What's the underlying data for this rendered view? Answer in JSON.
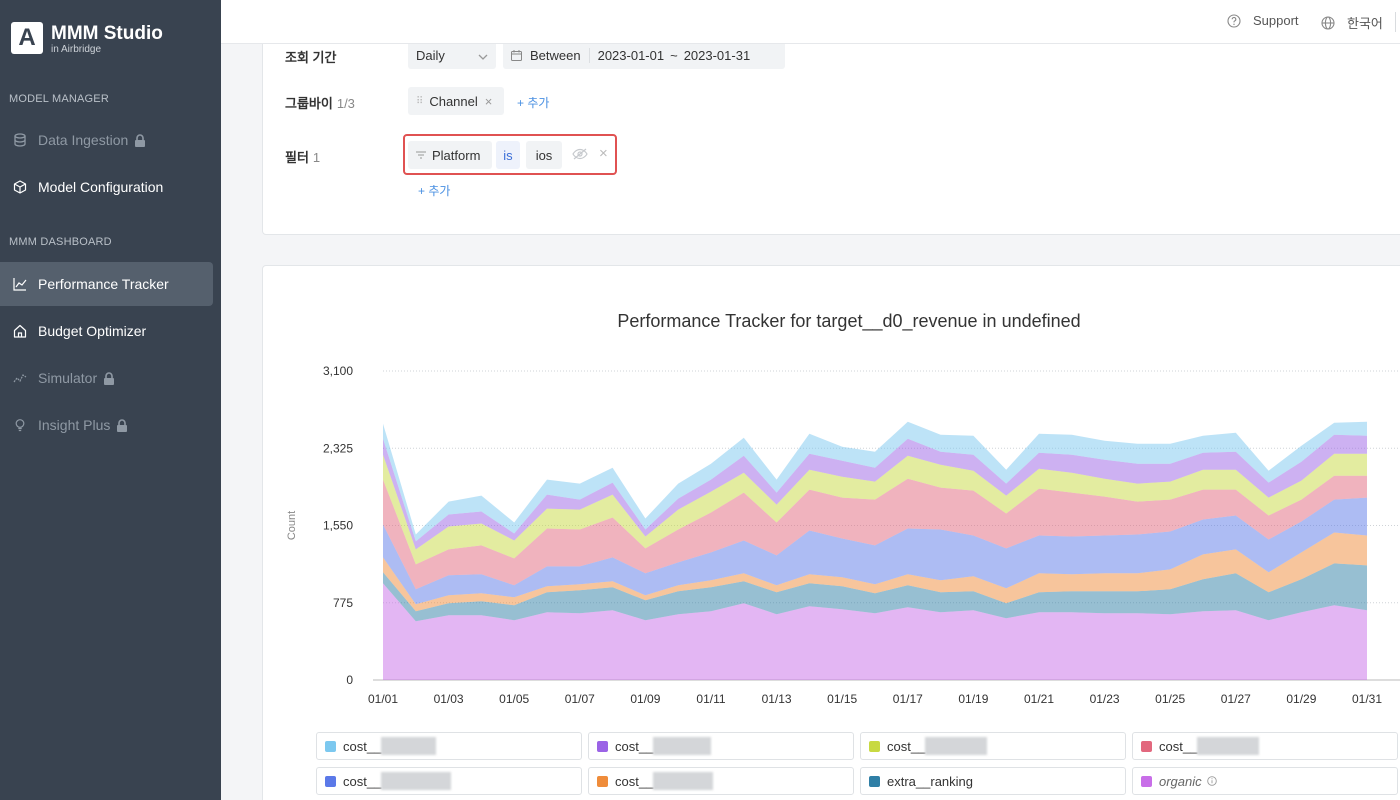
{
  "brand": {
    "logo_letter": "A",
    "title": "MMM Studio",
    "subtitle": "in Airbridge"
  },
  "sidebar": {
    "sections": [
      {
        "title": "MODEL MANAGER"
      },
      {
        "title": "MMM DASHBOARD"
      }
    ],
    "items": [
      {
        "label": "Data Ingestion",
        "icon": "database-icon",
        "locked": true,
        "disabled": true
      },
      {
        "label": "Model Configuration",
        "icon": "cube-icon",
        "locked": false,
        "disabled": false
      },
      {
        "label": "Performance Tracker",
        "icon": "chart-line-icon",
        "locked": false,
        "active": true
      },
      {
        "label": "Budget Optimizer",
        "icon": "house-icon",
        "locked": false
      },
      {
        "label": "Simulator",
        "icon": "sparkline-icon",
        "locked": true,
        "disabled": true
      },
      {
        "label": "Insight Plus",
        "icon": "bulb-icon",
        "locked": true,
        "disabled": true
      }
    ]
  },
  "topbar": {
    "support": "Support",
    "language": "한국어"
  },
  "filters": {
    "period_label": "조회 기간",
    "granularity": "Daily",
    "between_label": "Between",
    "start_date": "2023-01-01",
    "range_sep": "~",
    "end_date": "2023-01-31",
    "groupby_label": "그룹바이",
    "groupby_count": "1/3",
    "groupby_chip": "Channel",
    "add_label": "+ 추가",
    "filter_label": "필터",
    "filter_count": "1",
    "filter_field": "Platform",
    "filter_op": "is",
    "filter_value": "ios"
  },
  "chart_data": {
    "type": "area",
    "title": "Performance Tracker for target__d0_revenue in undefined",
    "ylabel": "Count",
    "xlabel": "",
    "ylim": [
      0,
      3100
    ],
    "yticks": [
      "0",
      "775",
      "1,550",
      "2,325",
      "3,100"
    ],
    "x": [
      "01/01",
      "01/02",
      "01/03",
      "01/04",
      "01/05",
      "01/06",
      "01/07",
      "01/08",
      "01/09",
      "01/10",
      "01/11",
      "01/12",
      "01/13",
      "01/14",
      "01/15",
      "01/16",
      "01/17",
      "01/18",
      "01/19",
      "01/20",
      "01/21",
      "01/22",
      "01/23",
      "01/24",
      "01/25",
      "01/26",
      "01/27",
      "01/28",
      "01/29",
      "01/30",
      "01/31"
    ],
    "xticks": [
      "01/01",
      "01/03",
      "01/05",
      "01/07",
      "01/09",
      "01/11",
      "01/13",
      "01/15",
      "01/17",
      "01/19",
      "01/21",
      "01/23",
      "01/25",
      "01/27",
      "01/29",
      "01/31"
    ],
    "stacked": true,
    "series": [
      {
        "name": "organic",
        "color": "#c86ee8",
        "values": [
          970,
          590,
          650,
          650,
          600,
          680,
          670,
          700,
          600,
          660,
          690,
          770,
          660,
          740,
          710,
          670,
          730,
          680,
          700,
          620,
          680,
          680,
          670,
          670,
          660,
          690,
          700,
          600,
          680,
          750,
          700
        ]
      },
      {
        "name": "extra__ranking",
        "color": "#2f7fa6",
        "values": [
          110,
          100,
          120,
          140,
          150,
          200,
          230,
          230,
          200,
          230,
          240,
          220,
          220,
          230,
          230,
          200,
          220,
          200,
          190,
          150,
          200,
          210,
          220,
          220,
          250,
          320,
          370,
          280,
          330,
          420,
          450
        ]
      },
      {
        "name": "cost__",
        "color": "#ef8c3a",
        "values": [
          150,
          70,
          80,
          80,
          80,
          60,
          60,
          60,
          50,
          60,
          70,
          80,
          70,
          90,
          90,
          90,
          110,
          120,
          150,
          150,
          190,
          170,
          180,
          180,
          200,
          250,
          240,
          200,
          270,
          310,
          300
        ]
      },
      {
        "name": "cost__",
        "color": "#5b79e8",
        "values": [
          330,
          150,
          200,
          190,
          120,
          200,
          180,
          240,
          220,
          230,
          280,
          330,
          300,
          440,
          390,
          390,
          460,
          510,
          410,
          400,
          380,
          380,
          380,
          390,
          380,
          350,
          340,
          330,
          310,
          330,
          380
        ]
      },
      {
        "name": "cost__",
        "color": "#e2687e",
        "values": [
          450,
          250,
          260,
          290,
          270,
          380,
          370,
          400,
          250,
          330,
          400,
          480,
          330,
          410,
          410,
          460,
          500,
          420,
          450,
          350,
          470,
          440,
          390,
          330,
          320,
          300,
          260,
          240,
          220,
          240,
          220
        ]
      },
      {
        "name": "cost__",
        "color": "#c8d942",
        "values": [
          250,
          150,
          230,
          220,
          180,
          200,
          200,
          230,
          120,
          200,
          210,
          200,
          180,
          200,
          210,
          180,
          230,
          230,
          200,
          180,
          200,
          200,
          180,
          180,
          180,
          200,
          200,
          180,
          190,
          220,
          220
        ]
      },
      {
        "name": "cost__",
        "color": "#9b63e6",
        "values": [
          160,
          80,
          120,
          120,
          70,
          140,
          100,
          120,
          70,
          110,
          120,
          170,
          120,
          160,
          160,
          140,
          170,
          130,
          160,
          120,
          160,
          180,
          190,
          200,
          180,
          170,
          180,
          150,
          190,
          190,
          180
        ]
      },
      {
        "name": "cost__",
        "color": "#7cc8ef",
        "values": [
          150,
          70,
          130,
          160,
          110,
          150,
          160,
          150,
          110,
          150,
          160,
          180,
          130,
          200,
          140,
          160,
          170,
          170,
          190,
          140,
          190,
          200,
          190,
          200,
          200,
          170,
          190,
          120,
          160,
          120,
          140
        ]
      }
    ]
  },
  "legend": [
    {
      "label": "cost__",
      "color": "#7cc8ef",
      "icon": "",
      "redacted": 85
    },
    {
      "label": "cost__",
      "color": "#9b63e6",
      "icon": "",
      "redacted": 88
    },
    {
      "label": "cost__",
      "color": "#c8d942",
      "icon": "",
      "redacted": 92
    },
    {
      "label": "cost__",
      "color": "#e2687e",
      "icon": "",
      "redacted": 92
    },
    {
      "label": "cost__",
      "color": "#5b79e8",
      "icon": "",
      "redacted": 100
    },
    {
      "label": "cost__",
      "color": "#ef8c3a",
      "icon": "",
      "redacted": 90
    },
    {
      "label": "extra__ranking",
      "color": "#2f7fa6",
      "icon": "",
      "redacted": 0
    },
    {
      "label": "organic",
      "color": "#c86ee8",
      "icon": "info-icon",
      "redacted": 0
    }
  ]
}
